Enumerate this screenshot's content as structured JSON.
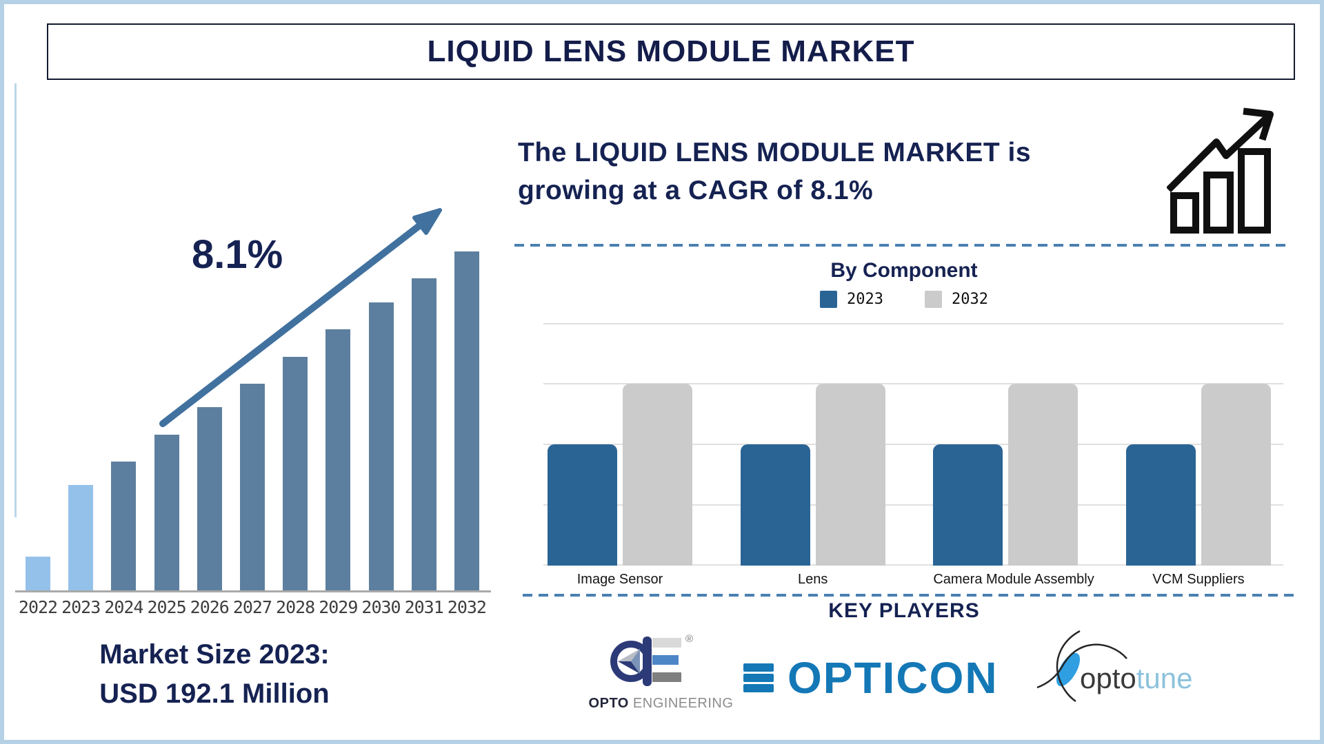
{
  "title": "LIQUID LENS MODULE MARKET",
  "headline": {
    "line1": "The LIQUID LENS MODULE MARKET is",
    "line2": "growing at a CAGR of 8.1%"
  },
  "left_chart": {
    "cagr_label": "8.1%",
    "market_size_line1": "Market Size 2023:",
    "market_size_line2": "USD 192.1 Million"
  },
  "by_component": {
    "title": "By Component"
  },
  "key_players": {
    "title": "KEY PLAYERS",
    "opto_engineering": {
      "primary": "OPTO",
      "secondary": " ENGINEERING",
      "registered": "®"
    },
    "opticon": {
      "name": "OPTICON"
    },
    "optotune": {
      "primary": "opto",
      "secondary": "tune"
    }
  },
  "icons": {
    "trend_icon": "bar-chart-with-rising-arrow",
    "cagr_arrow": "diagonal-up-arrow"
  },
  "colors": {
    "navy_text": "#152252",
    "bar_light": "#94c1ea",
    "bar_steel": "#5d7f9f",
    "arrow": "#41719e",
    "series_2023": "#2a6495",
    "series_2032": "#cbcbcb",
    "dashed_line": "#4a80b1",
    "gridline": "#e0e0e0",
    "frame_border": "#b5d1e6",
    "opticon_blue": "#1478b6",
    "optotune_blue": "#8cc2dc",
    "lens_fill": "#2f9fe2"
  },
  "chart_data": [
    {
      "type": "bar",
      "title": "Liquid Lens Module Market size by year",
      "categories": [
        "2022",
        "2023",
        "2024",
        "2025",
        "2026",
        "2027",
        "2028",
        "2029",
        "2030",
        "2031",
        "2032"
      ],
      "values_relative_pct": [
        10,
        31,
        38,
        46,
        54,
        61,
        69,
        77,
        85,
        92,
        100
      ],
      "value_note": "relative bar heights (2032 = 100); only labeled value: 2023 = USD 192.1 Million; CAGR 8.1%",
      "xlabel": "",
      "ylabel": "",
      "ylim": [
        0,
        100
      ],
      "grid": false,
      "annotations": [
        "8.1%",
        "Market Size 2023: USD 192.1 Million"
      ]
    },
    {
      "type": "bar",
      "title": "By Component",
      "categories": [
        "Image Sensor",
        "Lens",
        "Camera Module Assembly",
        "VCM Suppliers"
      ],
      "series": [
        {
          "name": "2023",
          "values": [
            2,
            2,
            2,
            2
          ]
        },
        {
          "name": "2032",
          "values": [
            3,
            3,
            3,
            3
          ]
        }
      ],
      "value_note": "no numeric axis labels shown; heights in axis grid units (4 gridline intervals total)",
      "ylim": [
        0,
        4
      ],
      "grid": true,
      "legend_position": "top"
    }
  ]
}
